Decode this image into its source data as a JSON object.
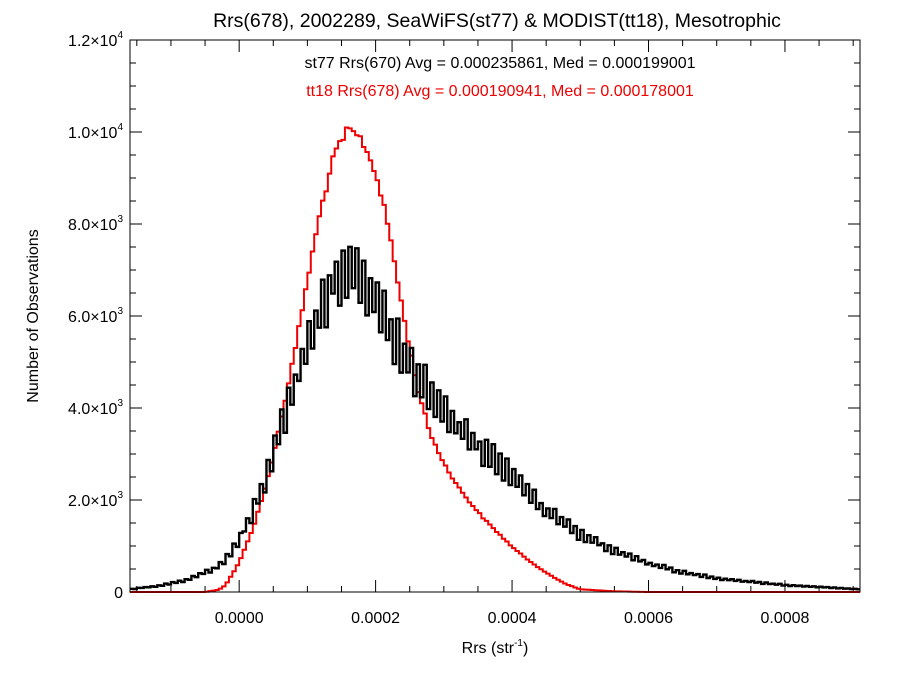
{
  "chart_data": {
    "type": "histogram",
    "title": "Rrs(678), 2002289, SeaWiFS(st77) & MODIST(tt18), Mesotrophic",
    "xlabel_main": "Rrs (str",
    "xlabel_sup": "-1",
    "xlabel_close": ")",
    "ylabel": "Number of Observations",
    "xlim": [
      -0.00016,
      0.00091
    ],
    "ylim": [
      0,
      12000
    ],
    "x_ticks": [
      {
        "value": 0.0,
        "label": "0.0000"
      },
      {
        "value": 0.0002,
        "label": "0.0002"
      },
      {
        "value": 0.0004,
        "label": "0.0004"
      },
      {
        "value": 0.0006,
        "label": "0.0006"
      },
      {
        "value": 0.0008,
        "label": "0.0008"
      }
    ],
    "y_ticks": [
      {
        "value": 0,
        "mant": "0",
        "exp": ""
      },
      {
        "value": 2000,
        "mant": "2.0×10",
        "exp": "3"
      },
      {
        "value": 4000,
        "mant": "4.0×10",
        "exp": "3"
      },
      {
        "value": 6000,
        "mant": "6.0×10",
        "exp": "3"
      },
      {
        "value": 8000,
        "mant": "8.0×10",
        "exp": "3"
      },
      {
        "value": 10000,
        "mant": "1.0×10",
        "exp": "4"
      },
      {
        "value": 12000,
        "mant": "1.2×10",
        "exp": "4"
      }
    ],
    "bin_width": 5e-06,
    "series": [
      {
        "name": "st77",
        "color": "#000000",
        "annotation": "st77 Rrs(670) Avg = 0.000235861, Med = 0.000199001",
        "knots": [
          [
            -0.00016,
            60
          ],
          [
            -0.00012,
            130
          ],
          [
            -8e-05,
            250
          ],
          [
            -4e-05,
            480
          ],
          [
            -2e-05,
            700
          ],
          [
            0.0,
            1150
          ],
          [
            2e-05,
            1750
          ],
          [
            4e-05,
            2500
          ],
          [
            6e-05,
            3500
          ],
          [
            8e-05,
            4400
          ],
          [
            0.0001,
            5400
          ],
          [
            0.00012,
            6200
          ],
          [
            0.00014,
            6800
          ],
          [
            0.00016,
            7000
          ],
          [
            0.00018,
            6700
          ],
          [
            0.0002,
            6300
          ],
          [
            0.00022,
            5800
          ],
          [
            0.00024,
            5200
          ],
          [
            0.00026,
            4700
          ],
          [
            0.00028,
            4300
          ],
          [
            0.0003,
            3950
          ],
          [
            0.00032,
            3600
          ],
          [
            0.00034,
            3300
          ],
          [
            0.00036,
            3050
          ],
          [
            0.00038,
            2800
          ],
          [
            0.0004,
            2500
          ],
          [
            0.00042,
            2200
          ],
          [
            0.00044,
            1900
          ],
          [
            0.00046,
            1650
          ],
          [
            0.00048,
            1450
          ],
          [
            0.0005,
            1250
          ],
          [
            0.00055,
            900
          ],
          [
            0.0006,
            620
          ],
          [
            0.00065,
            430
          ],
          [
            0.0007,
            300
          ],
          [
            0.00075,
            220
          ],
          [
            0.0008,
            150
          ],
          [
            0.00085,
            110
          ],
          [
            0.00091,
            60
          ]
        ]
      },
      {
        "name": "tt18",
        "color": "#ee0000",
        "annotation": "tt18 Rrs(678) Avg = 0.000190941, Med = 0.000178001",
        "knots": [
          [
            -0.00016,
            0
          ],
          [
            -5e-05,
            0
          ],
          [
            -3e-05,
            50
          ],
          [
            -2e-05,
            150
          ],
          [
            0.0,
            650
          ],
          [
            2e-05,
            1400
          ],
          [
            4e-05,
            2400
          ],
          [
            6e-05,
            3700
          ],
          [
            8e-05,
            5200
          ],
          [
            0.0001,
            6900
          ],
          [
            0.00012,
            8500
          ],
          [
            0.00014,
            9700
          ],
          [
            0.00016,
            10250
          ],
          [
            0.00018,
            10000
          ],
          [
            0.0002,
            9300
          ],
          [
            0.00022,
            8000
          ],
          [
            0.00024,
            6200
          ],
          [
            0.00026,
            4600
          ],
          [
            0.00028,
            3500
          ],
          [
            0.0003,
            2850
          ],
          [
            0.00032,
            2350
          ],
          [
            0.00034,
            1950
          ],
          [
            0.00036,
            1600
          ],
          [
            0.00038,
            1300
          ],
          [
            0.0004,
            1000
          ],
          [
            0.00042,
            750
          ],
          [
            0.00044,
            530
          ],
          [
            0.00046,
            330
          ],
          [
            0.00048,
            170
          ],
          [
            0.0005,
            60
          ],
          [
            0.00055,
            15
          ],
          [
            0.0006,
            0
          ],
          [
            0.00091,
            0
          ]
        ]
      }
    ]
  }
}
